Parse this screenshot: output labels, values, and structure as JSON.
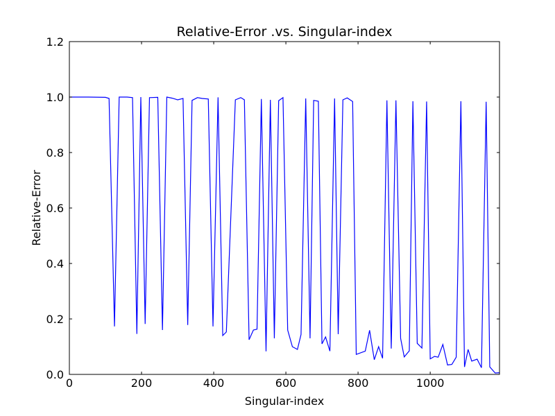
{
  "chart_data": {
    "type": "line",
    "title": "Relative-Error .vs. Singular-index",
    "xlabel": "Singular-index",
    "ylabel": "Relative-Error",
    "xlim": [
      0,
      1192
    ],
    "ylim": [
      0.0,
      1.2
    ],
    "xticks": [
      0,
      200,
      400,
      600,
      800,
      1000
    ],
    "xtick_labels": [
      "0",
      "200",
      "400",
      "600",
      "800",
      "1000"
    ],
    "yticks": [
      0.0,
      0.2,
      0.4,
      0.6,
      0.8,
      1.0,
      1.2
    ],
    "ytick_labels": [
      "0.0",
      "0.2",
      "0.4",
      "0.6",
      "0.8",
      "1.0",
      "1.2"
    ],
    "grid": false,
    "line_color": "#0000ff",
    "series": [
      {
        "name": "Relative-Error",
        "x": [
          0,
          50,
          100,
          110,
          125,
          138,
          160,
          175,
          187,
          198,
          210,
          222,
          245,
          258,
          270,
          285,
          300,
          315,
          328,
          340,
          355,
          368,
          385,
          398,
          412,
          425,
          435,
          460,
          475,
          485,
          498,
          510,
          520,
          532,
          545,
          557,
          568,
          580,
          592,
          605,
          618,
          632,
          642,
          655,
          667,
          677,
          690,
          700,
          710,
          722,
          735,
          745,
          758,
          770,
          785,
          795,
          820,
          832,
          845,
          857,
          868,
          880,
          892,
          905,
          918,
          928,
          942,
          952,
          964,
          977,
          990,
          1000,
          1012,
          1022,
          1035,
          1048,
          1060,
          1072,
          1085,
          1095,
          1105,
          1115,
          1130,
          1142,
          1155,
          1165,
          1180,
          1192
        ],
        "y": [
          1.0,
          1.0,
          0.999,
          0.995,
          0.173,
          1.0,
          1.0,
          0.998,
          0.146,
          1.0,
          0.182,
          0.998,
          0.999,
          0.16,
          1.0,
          0.996,
          0.99,
          0.995,
          0.178,
          0.988,
          0.998,
          0.995,
          0.993,
          0.173,
          0.999,
          0.14,
          0.153,
          0.99,
          0.998,
          0.99,
          0.125,
          0.16,
          0.163,
          0.993,
          0.083,
          0.99,
          0.13,
          0.987,
          0.998,
          0.16,
          0.1,
          0.09,
          0.144,
          0.995,
          0.13,
          0.988,
          0.985,
          0.11,
          0.135,
          0.084,
          0.995,
          0.145,
          0.99,
          0.997,
          0.984,
          0.072,
          0.084,
          0.159,
          0.053,
          0.1,
          0.058,
          0.988,
          0.093,
          0.988,
          0.13,
          0.063,
          0.085,
          0.985,
          0.112,
          0.095,
          0.984,
          0.056,
          0.065,
          0.062,
          0.108,
          0.034,
          0.036,
          0.062,
          0.985,
          0.027,
          0.09,
          0.048,
          0.055,
          0.024,
          0.983,
          0.027,
          0.005,
          0.006
        ]
      }
    ]
  }
}
